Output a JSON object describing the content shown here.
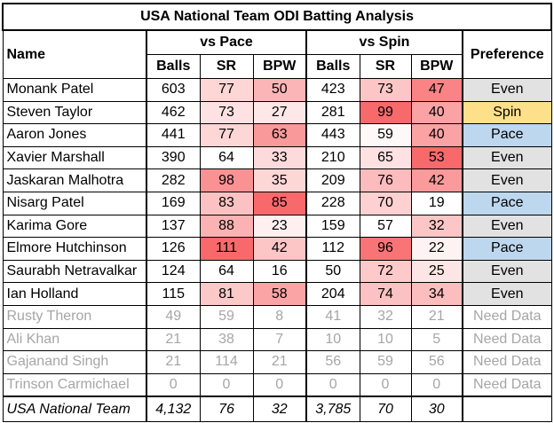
{
  "title": "USA National Team ODI Batting Analysis",
  "headers": {
    "name": "Name",
    "pace": "vs Pace",
    "spin": "vs Spin",
    "preference": "Preference",
    "balls": "Balls",
    "sr": "SR",
    "bpw": "BPW"
  },
  "colors": {
    "pref_even": "#e2e2e2",
    "pref_spin": "#ffe08a",
    "pref_pace": "#bdd7ee",
    "heat_max": "#f8696b",
    "heat_min": "#ffffff"
  },
  "rows": [
    {
      "name": "Monank Patel",
      "pace_balls": "603",
      "pace_sr": "77",
      "pace_bpw": "50",
      "spin_balls": "423",
      "spin_sr": "73",
      "spin_bpw": "47",
      "preference": "Even",
      "dim": false
    },
    {
      "name": "Steven Taylor",
      "pace_balls": "462",
      "pace_sr": "73",
      "pace_bpw": "27",
      "spin_balls": "281",
      "spin_sr": "99",
      "spin_bpw": "40",
      "preference": "Spin",
      "dim": false
    },
    {
      "name": "Aaron Jones",
      "pace_balls": "441",
      "pace_sr": "77",
      "pace_bpw": "63",
      "spin_balls": "443",
      "spin_sr": "59",
      "spin_bpw": "40",
      "preference": "Pace",
      "dim": false
    },
    {
      "name": "Xavier Marshall",
      "pace_balls": "390",
      "pace_sr": "64",
      "pace_bpw": "33",
      "spin_balls": "210",
      "spin_sr": "65",
      "spin_bpw": "53",
      "preference": "Even",
      "dim": false
    },
    {
      "name": "Jaskaran Malhotra",
      "pace_balls": "282",
      "pace_sr": "98",
      "pace_bpw": "35",
      "spin_balls": "209",
      "spin_sr": "76",
      "spin_bpw": "42",
      "preference": "Even",
      "dim": false
    },
    {
      "name": "Nisarg Patel",
      "pace_balls": "169",
      "pace_sr": "83",
      "pace_bpw": "85",
      "spin_balls": "228",
      "spin_sr": "70",
      "spin_bpw": "19",
      "preference": "Pace",
      "dim": false
    },
    {
      "name": "Karima Gore",
      "pace_balls": "137",
      "pace_sr": "88",
      "pace_bpw": "23",
      "spin_balls": "159",
      "spin_sr": "57",
      "spin_bpw": "32",
      "preference": "Even",
      "dim": false
    },
    {
      "name": "Elmore Hutchinson",
      "pace_balls": "126",
      "pace_sr": "111",
      "pace_bpw": "42",
      "spin_balls": "112",
      "spin_sr": "96",
      "spin_bpw": "22",
      "preference": "Pace",
      "dim": false
    },
    {
      "name": "Saurabh Netravalkar",
      "pace_balls": "124",
      "pace_sr": "64",
      "pace_bpw": "16",
      "spin_balls": "50",
      "spin_sr": "72",
      "spin_bpw": "25",
      "preference": "Even",
      "dim": false
    },
    {
      "name": "Ian Holland",
      "pace_balls": "115",
      "pace_sr": "81",
      "pace_bpw": "58",
      "spin_balls": "204",
      "spin_sr": "74",
      "spin_bpw": "34",
      "preference": "Even",
      "dim": false
    },
    {
      "name": "Rusty Theron",
      "pace_balls": "49",
      "pace_sr": "59",
      "pace_bpw": "8",
      "spin_balls": "41",
      "spin_sr": "32",
      "spin_bpw": "21",
      "preference": "Need Data",
      "dim": true
    },
    {
      "name": "Ali Khan",
      "pace_balls": "21",
      "pace_sr": "38",
      "pace_bpw": "7",
      "spin_balls": "10",
      "spin_sr": "10",
      "spin_bpw": "5",
      "preference": "Need Data",
      "dim": true
    },
    {
      "name": "Gajanand Singh",
      "pace_balls": "21",
      "pace_sr": "114",
      "pace_bpw": "21",
      "spin_balls": "56",
      "spin_sr": "59",
      "spin_bpw": "56",
      "preference": "Need Data",
      "dim": true
    },
    {
      "name": "Trinson Carmichael",
      "pace_balls": "0",
      "pace_sr": "0",
      "pace_bpw": "0",
      "spin_balls": "0",
      "spin_sr": "0",
      "spin_bpw": "0",
      "preference": "Need Data",
      "dim": true
    }
  ],
  "total": {
    "name": "USA National Team",
    "pace_balls": "4,132",
    "pace_sr": "76",
    "pace_bpw": "32",
    "spin_balls": "3,785",
    "spin_sr": "70",
    "spin_bpw": "30",
    "preference": ""
  }
}
